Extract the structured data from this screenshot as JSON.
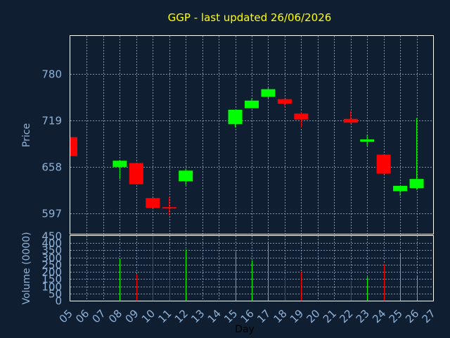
{
  "chart_data": [
    {
      "type": "candlestick",
      "title": "GGP - last updated 26/06/2026",
      "ylabel": "Price",
      "xlabel": "Day",
      "x_tick_labels": [
        "05",
        "06",
        "07",
        "08",
        "09",
        "10",
        "11",
        "12",
        "13",
        "14",
        "15",
        "16",
        "17",
        "18",
        "19",
        "20",
        "21",
        "22",
        "23",
        "24",
        "25",
        "26",
        "27"
      ],
      "y_tick_labels": [
        597,
        658,
        719,
        780
      ],
      "ylim": [
        570,
        830
      ],
      "grid": true,
      "colors": {
        "up": "#00ff00",
        "down": "#ff0000",
        "background": "#0f1e30",
        "plot_border": "#ffffff",
        "text": "#8fb3d9",
        "title": "#ffff00"
      },
      "candles": [
        {
          "day": "05",
          "open": 697,
          "close": 672,
          "high": 697,
          "low": 672
        },
        {
          "day": "08",
          "open": 658,
          "close": 666,
          "high": 666,
          "low": 642
        },
        {
          "day": "09",
          "open": 663,
          "close": 635,
          "high": 663,
          "low": 635
        },
        {
          "day": "10",
          "open": 617,
          "close": 604,
          "high": 617,
          "low": 604
        },
        {
          "day": "11",
          "open": 605,
          "close": 604,
          "high": 618,
          "low": 594
        },
        {
          "day": "12",
          "open": 639,
          "close": 653,
          "high": 655,
          "low": 634
        },
        {
          "day": "15",
          "open": 714,
          "close": 733,
          "high": 733,
          "low": 710
        },
        {
          "day": "16",
          "open": 735,
          "close": 745,
          "high": 748,
          "low": 735
        },
        {
          "day": "17",
          "open": 750,
          "close": 760,
          "high": 763,
          "low": 748
        },
        {
          "day": "18",
          "open": 747,
          "close": 741,
          "high": 747,
          "low": 737
        },
        {
          "day": "19",
          "open": 728,
          "close": 720,
          "high": 730,
          "low": 710
        },
        {
          "day": "22",
          "open": 721,
          "close": 716,
          "high": 731,
          "low": 715
        },
        {
          "day": "23",
          "open": 691,
          "close": 694,
          "high": 700,
          "low": 685
        },
        {
          "day": "24",
          "open": 674,
          "close": 649,
          "high": 674,
          "low": 649
        },
        {
          "day": "25",
          "open": 626,
          "close": 633,
          "high": 633,
          "low": 620
        },
        {
          "day": "26",
          "open": 630,
          "close": 642,
          "high": 722,
          "low": 628
        }
      ]
    },
    {
      "type": "bar",
      "ylabel": "Volume (0000)",
      "xlabel": "Day",
      "y_tick_labels": [
        0,
        50,
        100,
        150,
        200,
        250,
        300,
        350,
        400,
        450
      ],
      "ylim": [
        0,
        450
      ],
      "grid": true,
      "categories": [
        "05",
        "08",
        "09",
        "10",
        "11",
        "12",
        "15",
        "16",
        "17",
        "18",
        "19",
        "22",
        "23",
        "24",
        "25",
        "26"
      ],
      "values": [
        0,
        290,
        185,
        450,
        250,
        355,
        340,
        280,
        395,
        180,
        200,
        140,
        165,
        255,
        325,
        170
      ],
      "bar_colors": [
        "up",
        "up",
        "down",
        "down",
        "down",
        "up",
        "up",
        "up",
        "up",
        "down",
        "down",
        "down",
        "up",
        "down",
        "up",
        "up"
      ]
    }
  ]
}
